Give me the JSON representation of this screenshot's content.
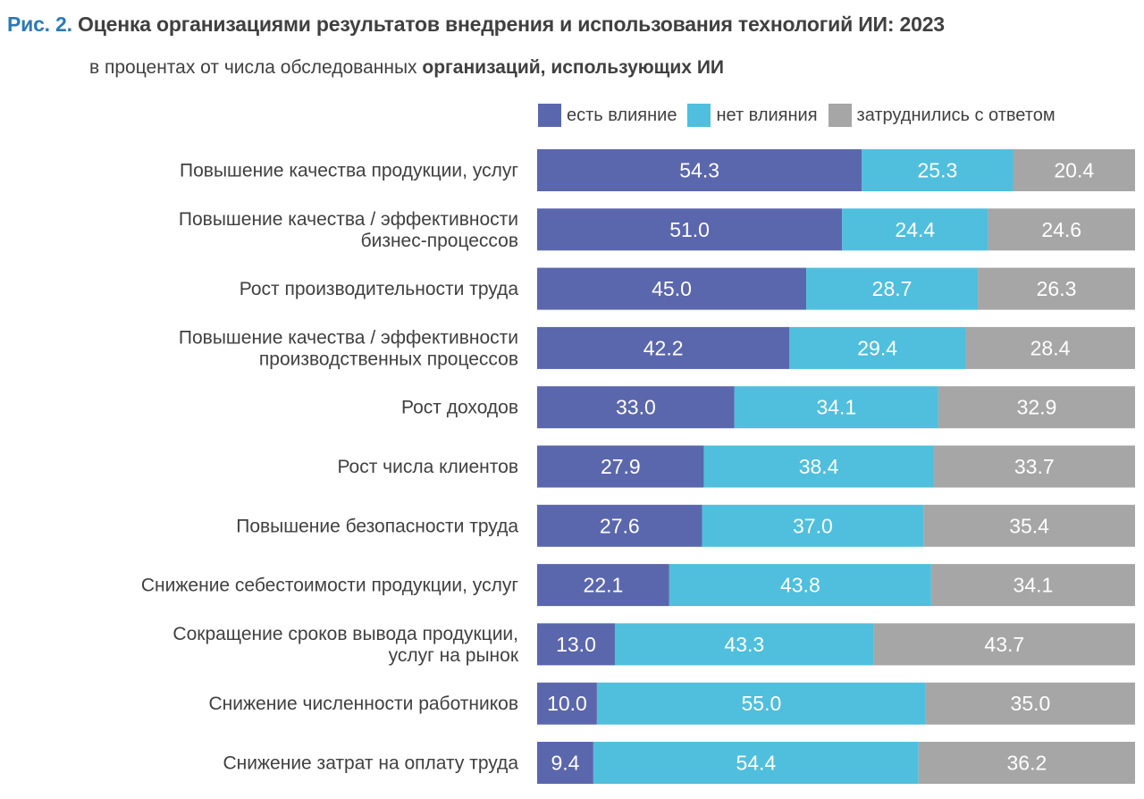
{
  "header": {
    "fig_label": "Рис. 2.",
    "title": "Оценка организациями результатов внедрения и использования технологий ИИ: 2023",
    "subtitle_plain": "в процентах от числа обследованных ",
    "subtitle_bold": "организаций, использующих ИИ"
  },
  "chart_data": {
    "type": "bar",
    "orientation": "horizontal",
    "stacked": true,
    "xlim": [
      0,
      100
    ],
    "legend_position": "top-right",
    "grid": false,
    "categories": [
      [
        "Повышение качества продукции, услуг"
      ],
      [
        "Повышение качества / эффективности",
        "бизнес-процессов"
      ],
      [
        "Рост производительности труда"
      ],
      [
        "Повышение качества / эффективности",
        "производственных процессов"
      ],
      [
        "Рост доходов"
      ],
      [
        "Рост числа клиентов"
      ],
      [
        "Повышение безопасности труда"
      ],
      [
        "Снижение себестоимости продукции, услуг"
      ],
      [
        "Сокращение сроков вывода продукции,",
        "услуг на рынок"
      ],
      [
        "Снижение численности работников"
      ],
      [
        "Снижение затрат на оплату труда"
      ]
    ],
    "series": [
      {
        "name": "есть влияние",
        "color": "#5b67ad",
        "values": [
          54.3,
          51.0,
          45.0,
          42.2,
          33.0,
          27.9,
          27.6,
          22.1,
          13.0,
          10.0,
          9.4
        ]
      },
      {
        "name": "нет влияния",
        "color": "#4fbfdd",
        "values": [
          25.3,
          24.4,
          28.7,
          29.4,
          34.1,
          38.4,
          37.0,
          43.8,
          43.3,
          55.0,
          54.4
        ]
      },
      {
        "name": "затруднились с ответом",
        "color": "#a6a6a6",
        "values": [
          20.4,
          24.6,
          26.3,
          28.4,
          32.9,
          33.7,
          35.4,
          34.1,
          43.7,
          35.0,
          36.2
        ]
      }
    ]
  }
}
